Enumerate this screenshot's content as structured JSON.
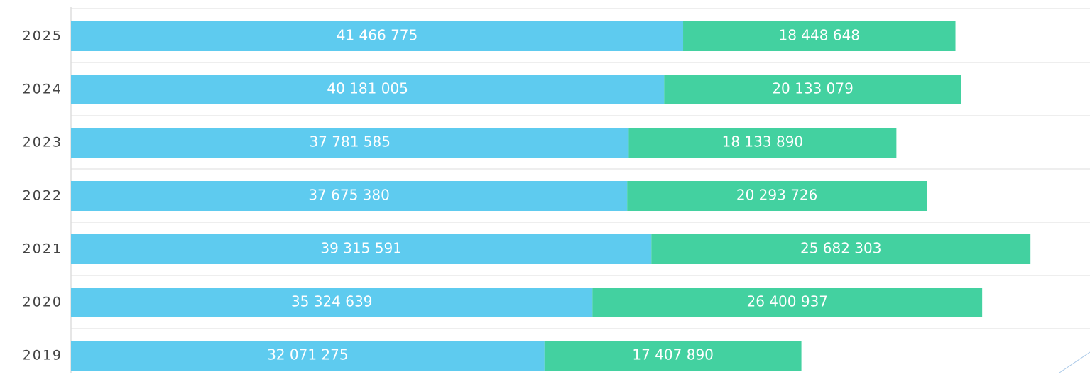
{
  "chart_data": {
    "type": "stacked-bar-horizontal",
    "categories": [
      "2025",
      "2024",
      "2023",
      "2022",
      "2021",
      "2020",
      "2019"
    ],
    "series": [
      {
        "color": "#5ecbef",
        "values": [
          41466775,
          40181005,
          37781585,
          37675380,
          39315591,
          35324639,
          32071275
        ],
        "value_labels": [
          "41 466 775",
          "40 181 005",
          "37 781 585",
          "37 675 380",
          "39 315 591",
          "35 324 639",
          "32 071 275"
        ]
      },
      {
        "color": "#43d1a0",
        "values": [
          18448648,
          20133079,
          18133890,
          20293726,
          25682303,
          26400937,
          17407890
        ],
        "value_labels": [
          "18 448 648",
          "20 133 079",
          "18 133 890",
          "20 293 726",
          "25 682 303",
          "26 400 937",
          "17 407 890"
        ]
      }
    ],
    "xlim": [
      0,
      69030000
    ]
  }
}
